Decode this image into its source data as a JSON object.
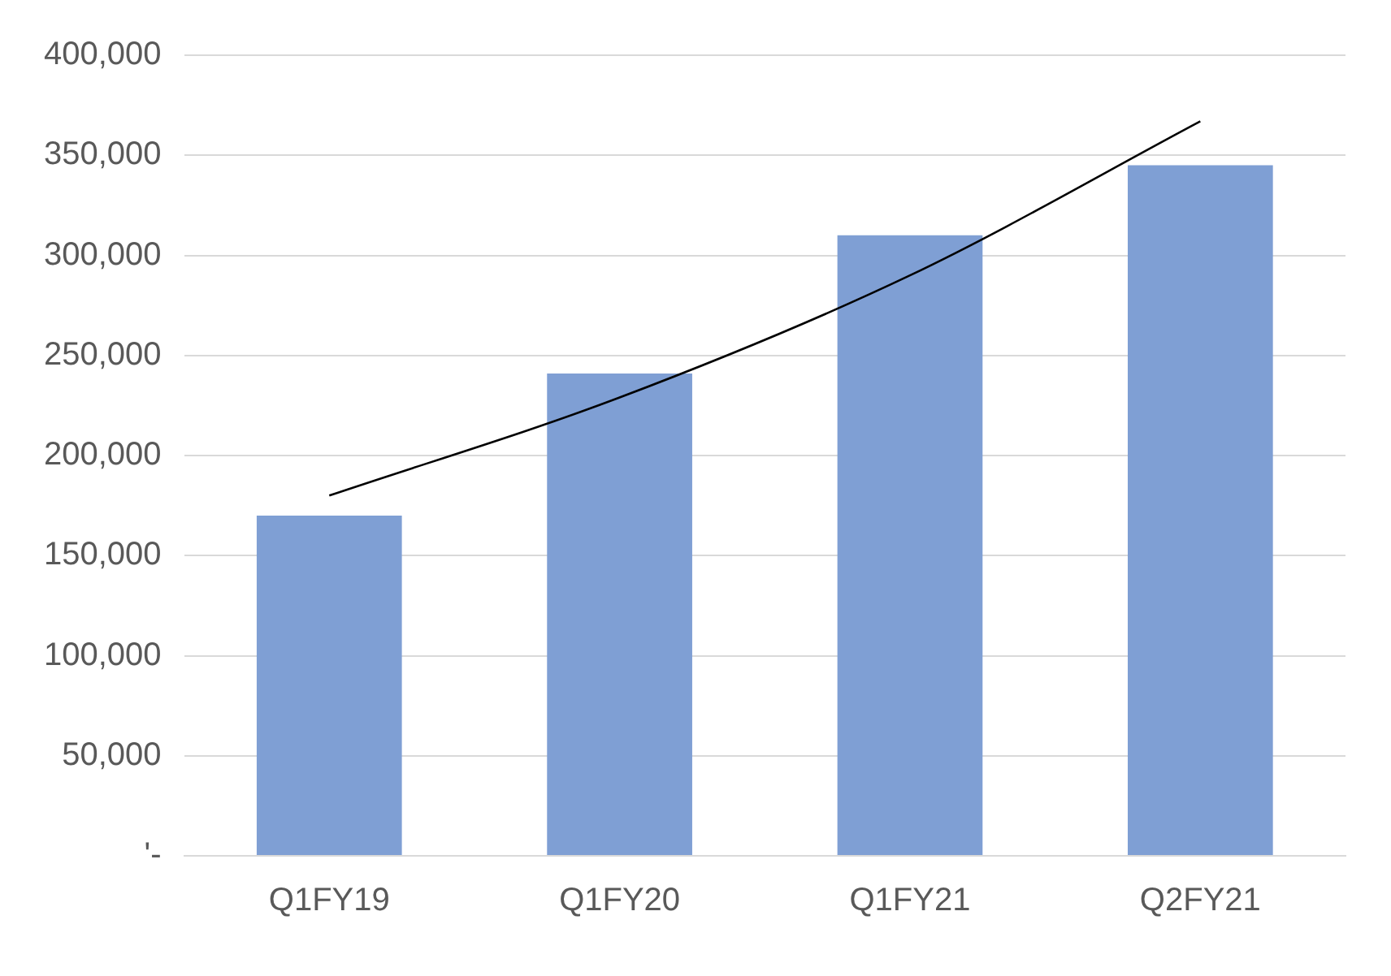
{
  "chart_data": {
    "type": "bar",
    "categories": [
      "Q1FY19",
      "Q1FY20",
      "Q1FY21",
      "Q2FY21"
    ],
    "series": [
      {
        "color": "#7f9fd4",
        "values": [
          170000,
          241000,
          310000,
          345000
        ]
      },
      {
        "type": "line",
        "color": "#000000",
        "values": [
          180000,
          229000,
          290000,
          367000
        ]
      }
    ],
    "ylim": [
      0,
      400000
    ],
    "yticks": [
      {
        "value": 0,
        "label": "'-"
      },
      {
        "value": 50000,
        "label": "50,000"
      },
      {
        "value": 100000,
        "label": "100,000"
      },
      {
        "value": 150000,
        "label": "150,000"
      },
      {
        "value": 200000,
        "label": "200,000"
      },
      {
        "value": 250000,
        "label": "250,000"
      },
      {
        "value": 300000,
        "label": "300,000"
      },
      {
        "value": 350000,
        "label": "350,000"
      },
      {
        "value": 400000,
        "label": "400,000"
      }
    ],
    "grid": "y",
    "legend": false,
    "marker": "none",
    "line_style": "solid"
  }
}
